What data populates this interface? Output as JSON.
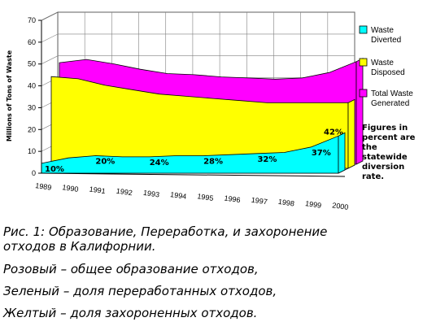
{
  "chart_data": {
    "type": "area",
    "three_d": true,
    "ylabel": "Millions of Tons of Waste",
    "ylim": [
      0,
      70
    ],
    "yticks": [
      0,
      10,
      20,
      30,
      40,
      50,
      60,
      70
    ],
    "grid": true,
    "legend_position": "right",
    "x": [
      "1989",
      "1990",
      "1991",
      "1992",
      "1993",
      "1994",
      "1995",
      "1996",
      "1997",
      "1998",
      "1999",
      "2000"
    ],
    "series": [
      {
        "name": "Waste Diverted",
        "color": "#00ffff",
        "values": [
          4.5,
          7,
          8,
          7.5,
          7.5,
          8,
          8,
          8.5,
          9,
          9.5,
          12,
          17
        ]
      },
      {
        "name": "Waste Disposed",
        "color": "#ffff00",
        "values": [
          42,
          41,
          38,
          36,
          34,
          33,
          32,
          31,
          30,
          30,
          30,
          30
        ]
      },
      {
        "name": "Total Waste Generated",
        "color": "#ff00ff",
        "values": [
          46.5,
          48,
          46,
          43.5,
          41.5,
          41,
          40,
          39.5,
          39,
          39.5,
          42,
          47
        ]
      }
    ],
    "annotations": [
      {
        "x": "1989",
        "label": "10%"
      },
      {
        "x": "1991",
        "label": "20%"
      },
      {
        "x": "1993",
        "label": "24%"
      },
      {
        "x": "1995",
        "label": "28%"
      },
      {
        "x": "1997",
        "label": "32%"
      },
      {
        "x": "1999",
        "label": "37%"
      },
      {
        "x": "2000",
        "label": "42%"
      }
    ],
    "side_note": [
      "Figures in",
      "percent are",
      "the",
      "statewide",
      "diversion",
      "rate."
    ],
    "legend_labels": [
      [
        "Waste",
        "Diverted"
      ],
      [
        "Waste",
        "Disposed"
      ],
      [
        "Total Waste",
        "Generated"
      ]
    ]
  },
  "caption": {
    "line1": "Рис. 1: Образование, Переработка, и захоронение",
    "line2": "отходов в Калифорнии.",
    "line3": "Розовый – общее образование отходов,",
    "line4": "Зеленый – доля переработанных отходов,",
    "line5": "Желтый – доля захороненных отходов."
  }
}
